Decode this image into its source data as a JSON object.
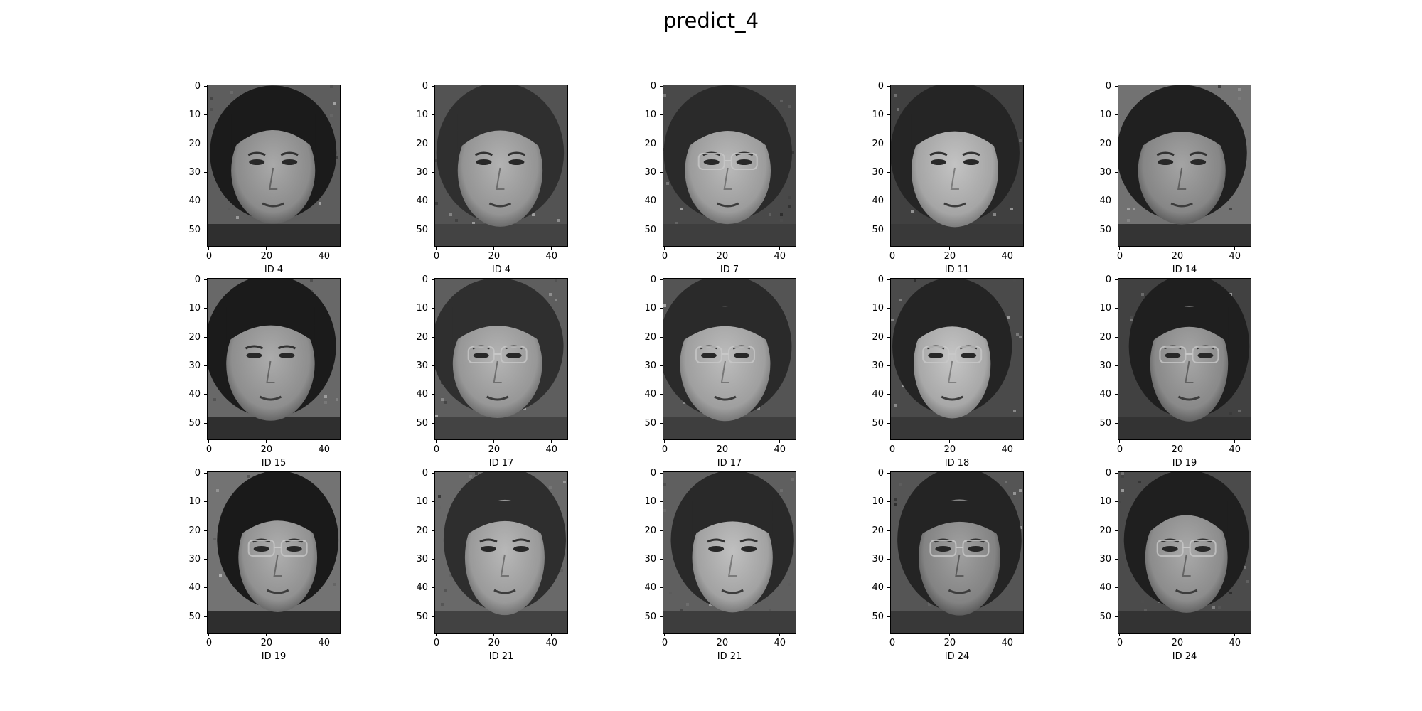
{
  "title": "predict_4",
  "axes": {
    "y_ticks": [
      "0",
      "10",
      "20",
      "30",
      "40",
      "50"
    ],
    "x_ticks": [
      "0",
      "20",
      "40"
    ]
  },
  "panels": [
    {
      "label": "ID 4",
      "image": "grayscale face image"
    },
    {
      "label": "ID 4",
      "image": "grayscale face image"
    },
    {
      "label": "ID 7",
      "image": "grayscale face image with glasses"
    },
    {
      "label": "ID 11",
      "image": "grayscale face image"
    },
    {
      "label": "ID 14",
      "image": "grayscale face image"
    },
    {
      "label": "ID 15",
      "image": "grayscale face image"
    },
    {
      "label": "ID 17",
      "image": "grayscale face image with glasses"
    },
    {
      "label": "ID 17",
      "image": "grayscale face image with glasses"
    },
    {
      "label": "ID 18",
      "image": "grayscale face image with glasses"
    },
    {
      "label": "ID 19",
      "image": "grayscale face image with glasses"
    },
    {
      "label": "ID 19",
      "image": "grayscale face image with glasses"
    },
    {
      "label": "ID 21",
      "image": "grayscale face image"
    },
    {
      "label": "ID 21",
      "image": "grayscale face image"
    },
    {
      "label": "ID 24",
      "image": "grayscale face image with glasses"
    },
    {
      "label": "ID 24",
      "image": "grayscale face image with glasses"
    }
  ]
}
